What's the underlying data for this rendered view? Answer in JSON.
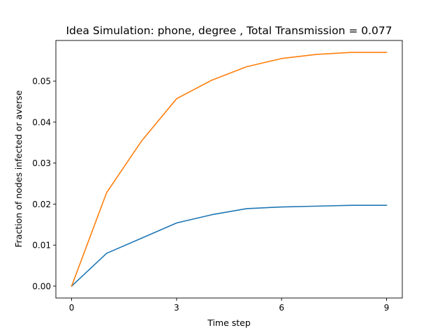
{
  "chart_data": {
    "type": "line",
    "title": "Idea Simulation: phone, degree , Total Transmission = 0.077",
    "xlabel": "Time step",
    "ylabel": "Fraction of nodes infected or averse",
    "x": [
      0,
      1,
      2,
      3,
      4,
      5,
      6,
      7,
      8,
      9
    ],
    "xlim": [
      -0.45,
      9.45
    ],
    "ylim": [
      -0.0029,
      0.0599
    ],
    "xticks": [
      0,
      3,
      6,
      9
    ],
    "xtick_labels": [
      "0",
      "3",
      "6",
      "9"
    ],
    "yticks": [
      0,
      0.01,
      0.02,
      0.03,
      0.04,
      0.05
    ],
    "ytick_labels": [
      "0.00",
      "0.01",
      "0.02",
      "0.03",
      "0.04",
      "0.05"
    ],
    "grid": false,
    "legend": "none",
    "series": [
      {
        "color": "#1f77b4",
        "values": [
          0.0,
          0.008,
          0.0117,
          0.0154,
          0.0174,
          0.0189,
          0.0193,
          0.0195,
          0.0197,
          0.0197
        ]
      },
      {
        "color": "#ff7f0e",
        "values": [
          0.0,
          0.0228,
          0.0354,
          0.0457,
          0.0502,
          0.0535,
          0.0555,
          0.0565,
          0.057,
          0.057
        ]
      }
    ]
  }
}
